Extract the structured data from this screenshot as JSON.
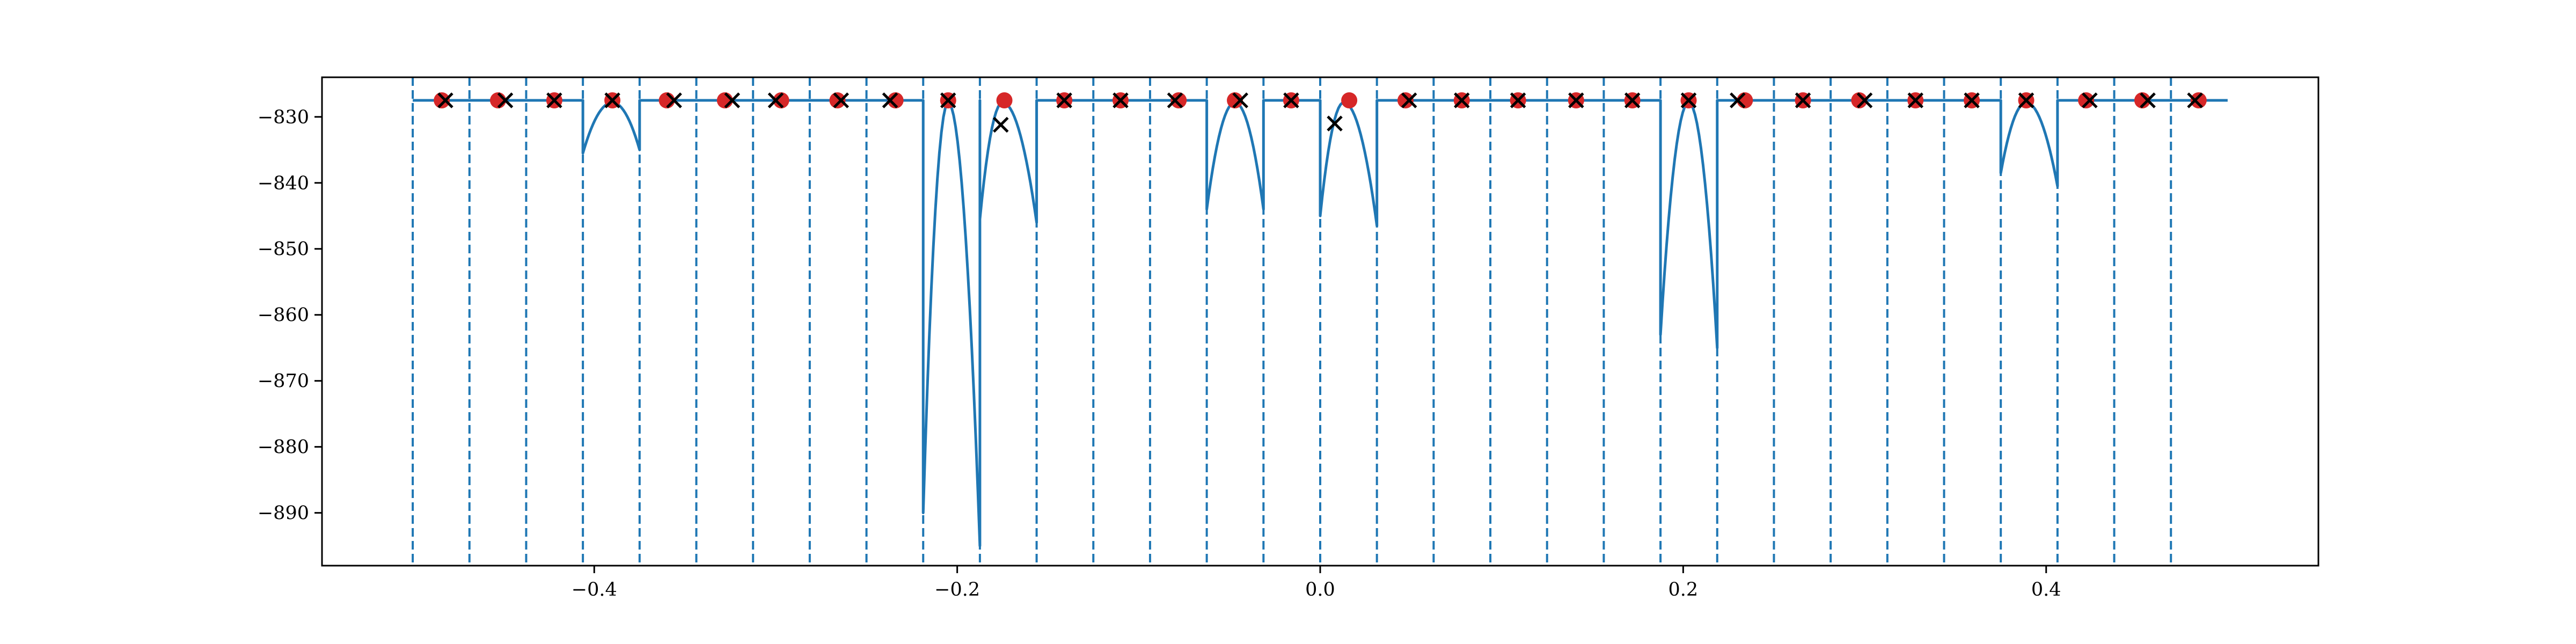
{
  "chart_data": {
    "type": "line",
    "title": "",
    "xlabel": "",
    "ylabel": "",
    "xlim": [
      -0.55,
      0.55
    ],
    "ylim": [
      -898,
      -824
    ],
    "x_ticks": [
      -0.4,
      -0.2,
      0.0,
      0.2,
      0.4
    ],
    "x_tick_labels": [
      "−0.4",
      "−0.2",
      "0.0",
      "0.2",
      "0.4"
    ],
    "y_ticks": [
      -830,
      -840,
      -850,
      -860,
      -870,
      -880,
      -890
    ],
    "y_tick_labels": [
      "−830",
      "−840",
      "−850",
      "−860",
      "−870",
      "−880",
      "−890"
    ],
    "grid": false,
    "colors": {
      "line": "#1f77b4",
      "dashed": "#1f77b4",
      "circle": "#d62728",
      "cross": "#000000"
    },
    "vertical_dashed_lines": [
      -0.5,
      -0.46875,
      -0.4375,
      -0.40625,
      -0.375,
      -0.34375,
      -0.3125,
      -0.28125,
      -0.25,
      -0.21875,
      -0.1875,
      -0.15625,
      -0.125,
      -0.09375,
      -0.0625,
      -0.03125,
      0.0,
      0.03125,
      0.0625,
      0.09375,
      0.125,
      0.15625,
      0.1875,
      0.21875,
      0.25,
      0.28125,
      0.3125,
      0.34375,
      0.375,
      0.40625,
      0.4375,
      0.46875
    ],
    "baseline": -827.5,
    "baseline_x_range": [
      -0.5,
      0.5
    ],
    "dips": [
      {
        "start": -0.40625,
        "end": -0.375,
        "y_start": -835.5,
        "peak_x": -0.39,
        "peak_y": -827.8,
        "y_end": -835.0
      },
      {
        "start": -0.21875,
        "end": -0.1875,
        "y_start": -890.0,
        "peak_x": -0.205,
        "peak_y": -827.8,
        "y_end": -895.0
      },
      {
        "start": -0.1875,
        "end": -0.15625,
        "y_start": -845.5,
        "peak_x": -0.175,
        "peak_y": -827.8,
        "y_end": -846.0
      },
      {
        "start": -0.0625,
        "end": -0.03125,
        "y_start": -844.0,
        "peak_x": -0.047,
        "peak_y": -827.8,
        "y_end": -844.0
      },
      {
        "start": 0.0,
        "end": 0.03125,
        "y_start": -845.0,
        "peak_x": 0.013,
        "peak_y": -827.8,
        "y_end": -846.5
      },
      {
        "start": 0.1875,
        "end": 0.21875,
        "y_start": -863.0,
        "peak_x": 0.203,
        "peak_y": -827.8,
        "y_end": -865.0
      },
      {
        "start": 0.375,
        "end": 0.40625,
        "y_start": -838.5,
        "peak_x": 0.389,
        "peak_y": -827.8,
        "y_end": -840.5
      }
    ],
    "series": [
      {
        "marker": "o",
        "x": [
          -0.484,
          -0.453,
          -0.422,
          -0.39,
          -0.36,
          -0.328,
          -0.297,
          -0.266,
          -0.234,
          -0.205,
          -0.174,
          -0.141,
          -0.11,
          -0.078,
          -0.047,
          -0.016,
          0.016,
          0.047,
          0.078,
          0.109,
          0.141,
          0.172,
          0.203,
          0.234,
          0.266,
          0.297,
          0.328,
          0.359,
          0.389,
          0.422,
          0.453,
          0.484
        ],
        "y": [
          -827.5,
          -827.5,
          -827.5,
          -827.5,
          -827.5,
          -827.5,
          -827.5,
          -827.5,
          -827.5,
          -827.5,
          -827.5,
          -827.5,
          -827.5,
          -827.5,
          -827.5,
          -827.5,
          -827.5,
          -827.5,
          -827.5,
          -827.5,
          -827.5,
          -827.5,
          -827.5,
          -827.5,
          -827.5,
          -827.5,
          -827.5,
          -827.5,
          -827.5,
          -827.5,
          -827.5,
          -827.5
        ]
      },
      {
        "marker": "x",
        "x": [
          -0.482,
          -0.449,
          -0.422,
          -0.39,
          -0.356,
          -0.324,
          -0.3,
          -0.264,
          -0.237,
          -0.205,
          -0.176,
          -0.141,
          -0.11,
          -0.08,
          -0.044,
          -0.016,
          0.008,
          0.049,
          0.078,
          0.109,
          0.141,
          0.172,
          0.203,
          0.23,
          0.266,
          0.3,
          0.328,
          0.359,
          0.389,
          0.424,
          0.456,
          0.482
        ],
        "y": [
          -827.5,
          -827.5,
          -827.5,
          -827.5,
          -827.5,
          -827.5,
          -827.5,
          -827.5,
          -827.5,
          -827.5,
          -831.2,
          -827.5,
          -827.5,
          -827.5,
          -827.5,
          -827.5,
          -831.0,
          -827.5,
          -827.5,
          -827.5,
          -827.5,
          -827.5,
          -827.5,
          -827.5,
          -827.5,
          -827.5,
          -827.5,
          -827.5,
          -827.5,
          -827.5,
          -827.5,
          -827.5
        ]
      }
    ]
  }
}
